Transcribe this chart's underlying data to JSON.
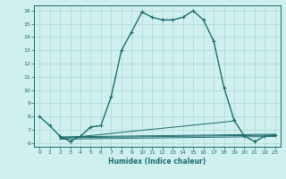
{
  "xlabel": "Humidex (Indice chaleur)",
  "xlim": [
    -0.5,
    23.5
  ],
  "ylim": [
    5.7,
    16.4
  ],
  "yticks": [
    6,
    7,
    8,
    9,
    10,
    11,
    12,
    13,
    14,
    15,
    16
  ],
  "xticks": [
    0,
    1,
    2,
    3,
    4,
    5,
    6,
    7,
    8,
    9,
    10,
    11,
    12,
    13,
    14,
    15,
    16,
    17,
    18,
    19,
    20,
    21,
    22,
    23
  ],
  "bg_color": "#cff0ee",
  "line_color": "#1a6b6b",
  "grid_color": "#b0dcd8",
  "main_x": [
    0,
    1,
    2,
    3,
    4,
    5,
    6,
    7,
    8,
    9,
    10,
    11,
    12,
    13,
    14,
    15,
    16,
    17,
    18,
    19,
    20,
    21,
    22,
    23
  ],
  "main_y": [
    8.0,
    7.3,
    6.5,
    6.1,
    6.5,
    7.2,
    7.3,
    9.5,
    13.0,
    14.4,
    15.9,
    15.5,
    15.3,
    15.3,
    15.5,
    16.0,
    15.3,
    13.7,
    10.2,
    7.7,
    6.5,
    6.1,
    6.5,
    6.6
  ],
  "dotted_x": [
    0,
    1,
    2,
    3,
    4,
    5,
    6,
    7,
    8,
    9,
    10,
    11,
    12,
    13,
    14,
    15,
    16,
    17,
    18,
    19,
    20,
    21,
    22,
    23
  ],
  "dotted_y": [
    8.0,
    7.3,
    6.5,
    6.1,
    6.5,
    7.2,
    7.3,
    9.5,
    13.0,
    14.4,
    15.9,
    15.5,
    15.3,
    15.3,
    15.5,
    16.0,
    15.3,
    13.7,
    10.2,
    7.7,
    6.5,
    6.1,
    6.5,
    6.6
  ],
  "flat_lines": [
    {
      "x": [
        2,
        23
      ],
      "y": [
        6.45,
        6.65
      ]
    },
    {
      "x": [
        2,
        23
      ],
      "y": [
        6.38,
        6.58
      ]
    },
    {
      "x": [
        2,
        19
      ],
      "y": [
        6.32,
        7.65
      ]
    },
    {
      "x": [
        2,
        23
      ],
      "y": [
        6.28,
        6.48
      ]
    }
  ]
}
